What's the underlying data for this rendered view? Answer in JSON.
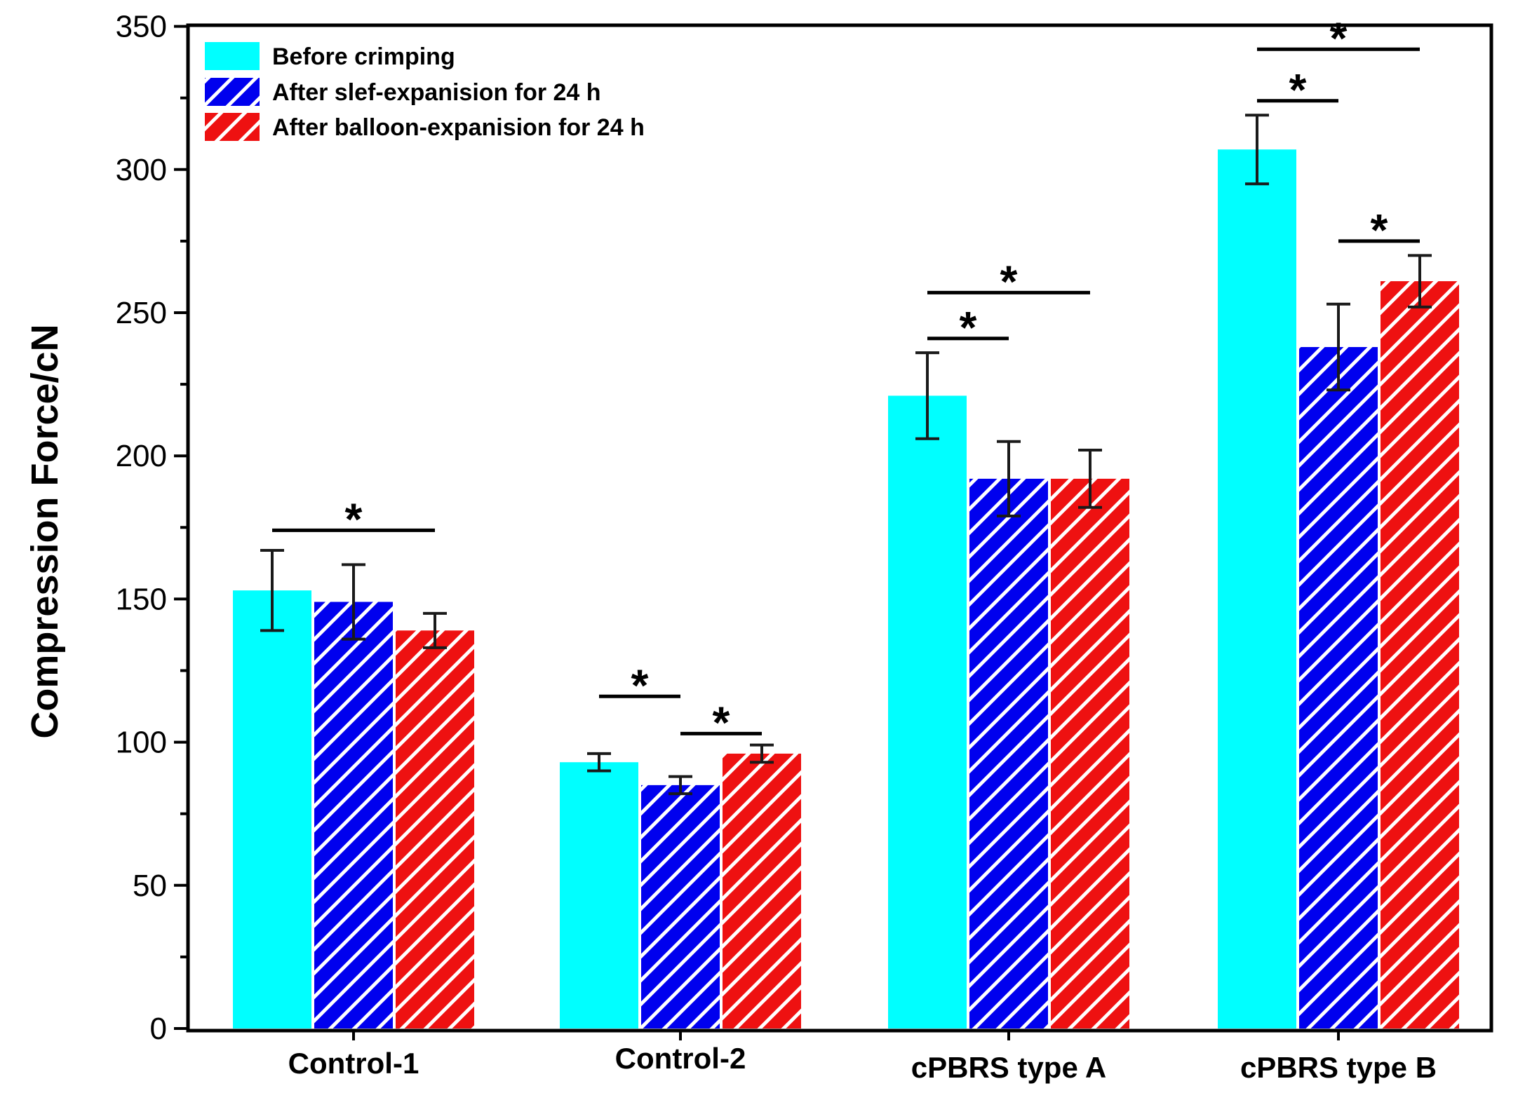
{
  "chart_data": {
    "type": "bar",
    "title": "",
    "xlabel": "",
    "ylabel": "Compression Force/cN",
    "ylim": [
      0,
      350
    ],
    "yticks": [
      0,
      50,
      100,
      150,
      200,
      250,
      300,
      350
    ],
    "grid": false,
    "legend_position": "top-left",
    "categories": [
      "Control-1",
      "Control-2",
      "cPBRS type A",
      "cPBRS type B"
    ],
    "series": [
      {
        "name": "Before crimping",
        "values": [
          153,
          93,
          221,
          307
        ],
        "errors": [
          14,
          3,
          15,
          12
        ],
        "color": "#00FFFF",
        "pattern": "solid"
      },
      {
        "name": "After slef-expanision for 24 h",
        "values": [
          149,
          85,
          192,
          238
        ],
        "errors": [
          13,
          3,
          13,
          15
        ],
        "color": "#0000EE",
        "pattern": "hatch"
      },
      {
        "name": "After balloon-expanision for 24 h",
        "values": [
          139,
          96,
          192,
          261
        ],
        "errors": [
          6,
          3,
          10,
          9
        ],
        "color": "#EE1111",
        "pattern": "hatch"
      }
    ],
    "significance": [
      {
        "category": 0,
        "from": 0,
        "to": 2,
        "y": 174,
        "label": "*"
      },
      {
        "category": 1,
        "from": 0,
        "to": 1,
        "y": 116,
        "label": "*"
      },
      {
        "category": 1,
        "from": 1,
        "to": 2,
        "y": 103,
        "label": "*"
      },
      {
        "category": 2,
        "from": 0,
        "to": 1,
        "y": 241,
        "label": "*"
      },
      {
        "category": 2,
        "from": 0,
        "to": 2,
        "y": 257,
        "label": "*"
      },
      {
        "category": 3,
        "from": 0,
        "to": 1,
        "y": 324,
        "label": "*"
      },
      {
        "category": 3,
        "from": 0,
        "to": 2,
        "y": 342,
        "label": "*"
      },
      {
        "category": 3,
        "from": 1,
        "to": 2,
        "y": 275,
        "label": "*"
      }
    ]
  }
}
